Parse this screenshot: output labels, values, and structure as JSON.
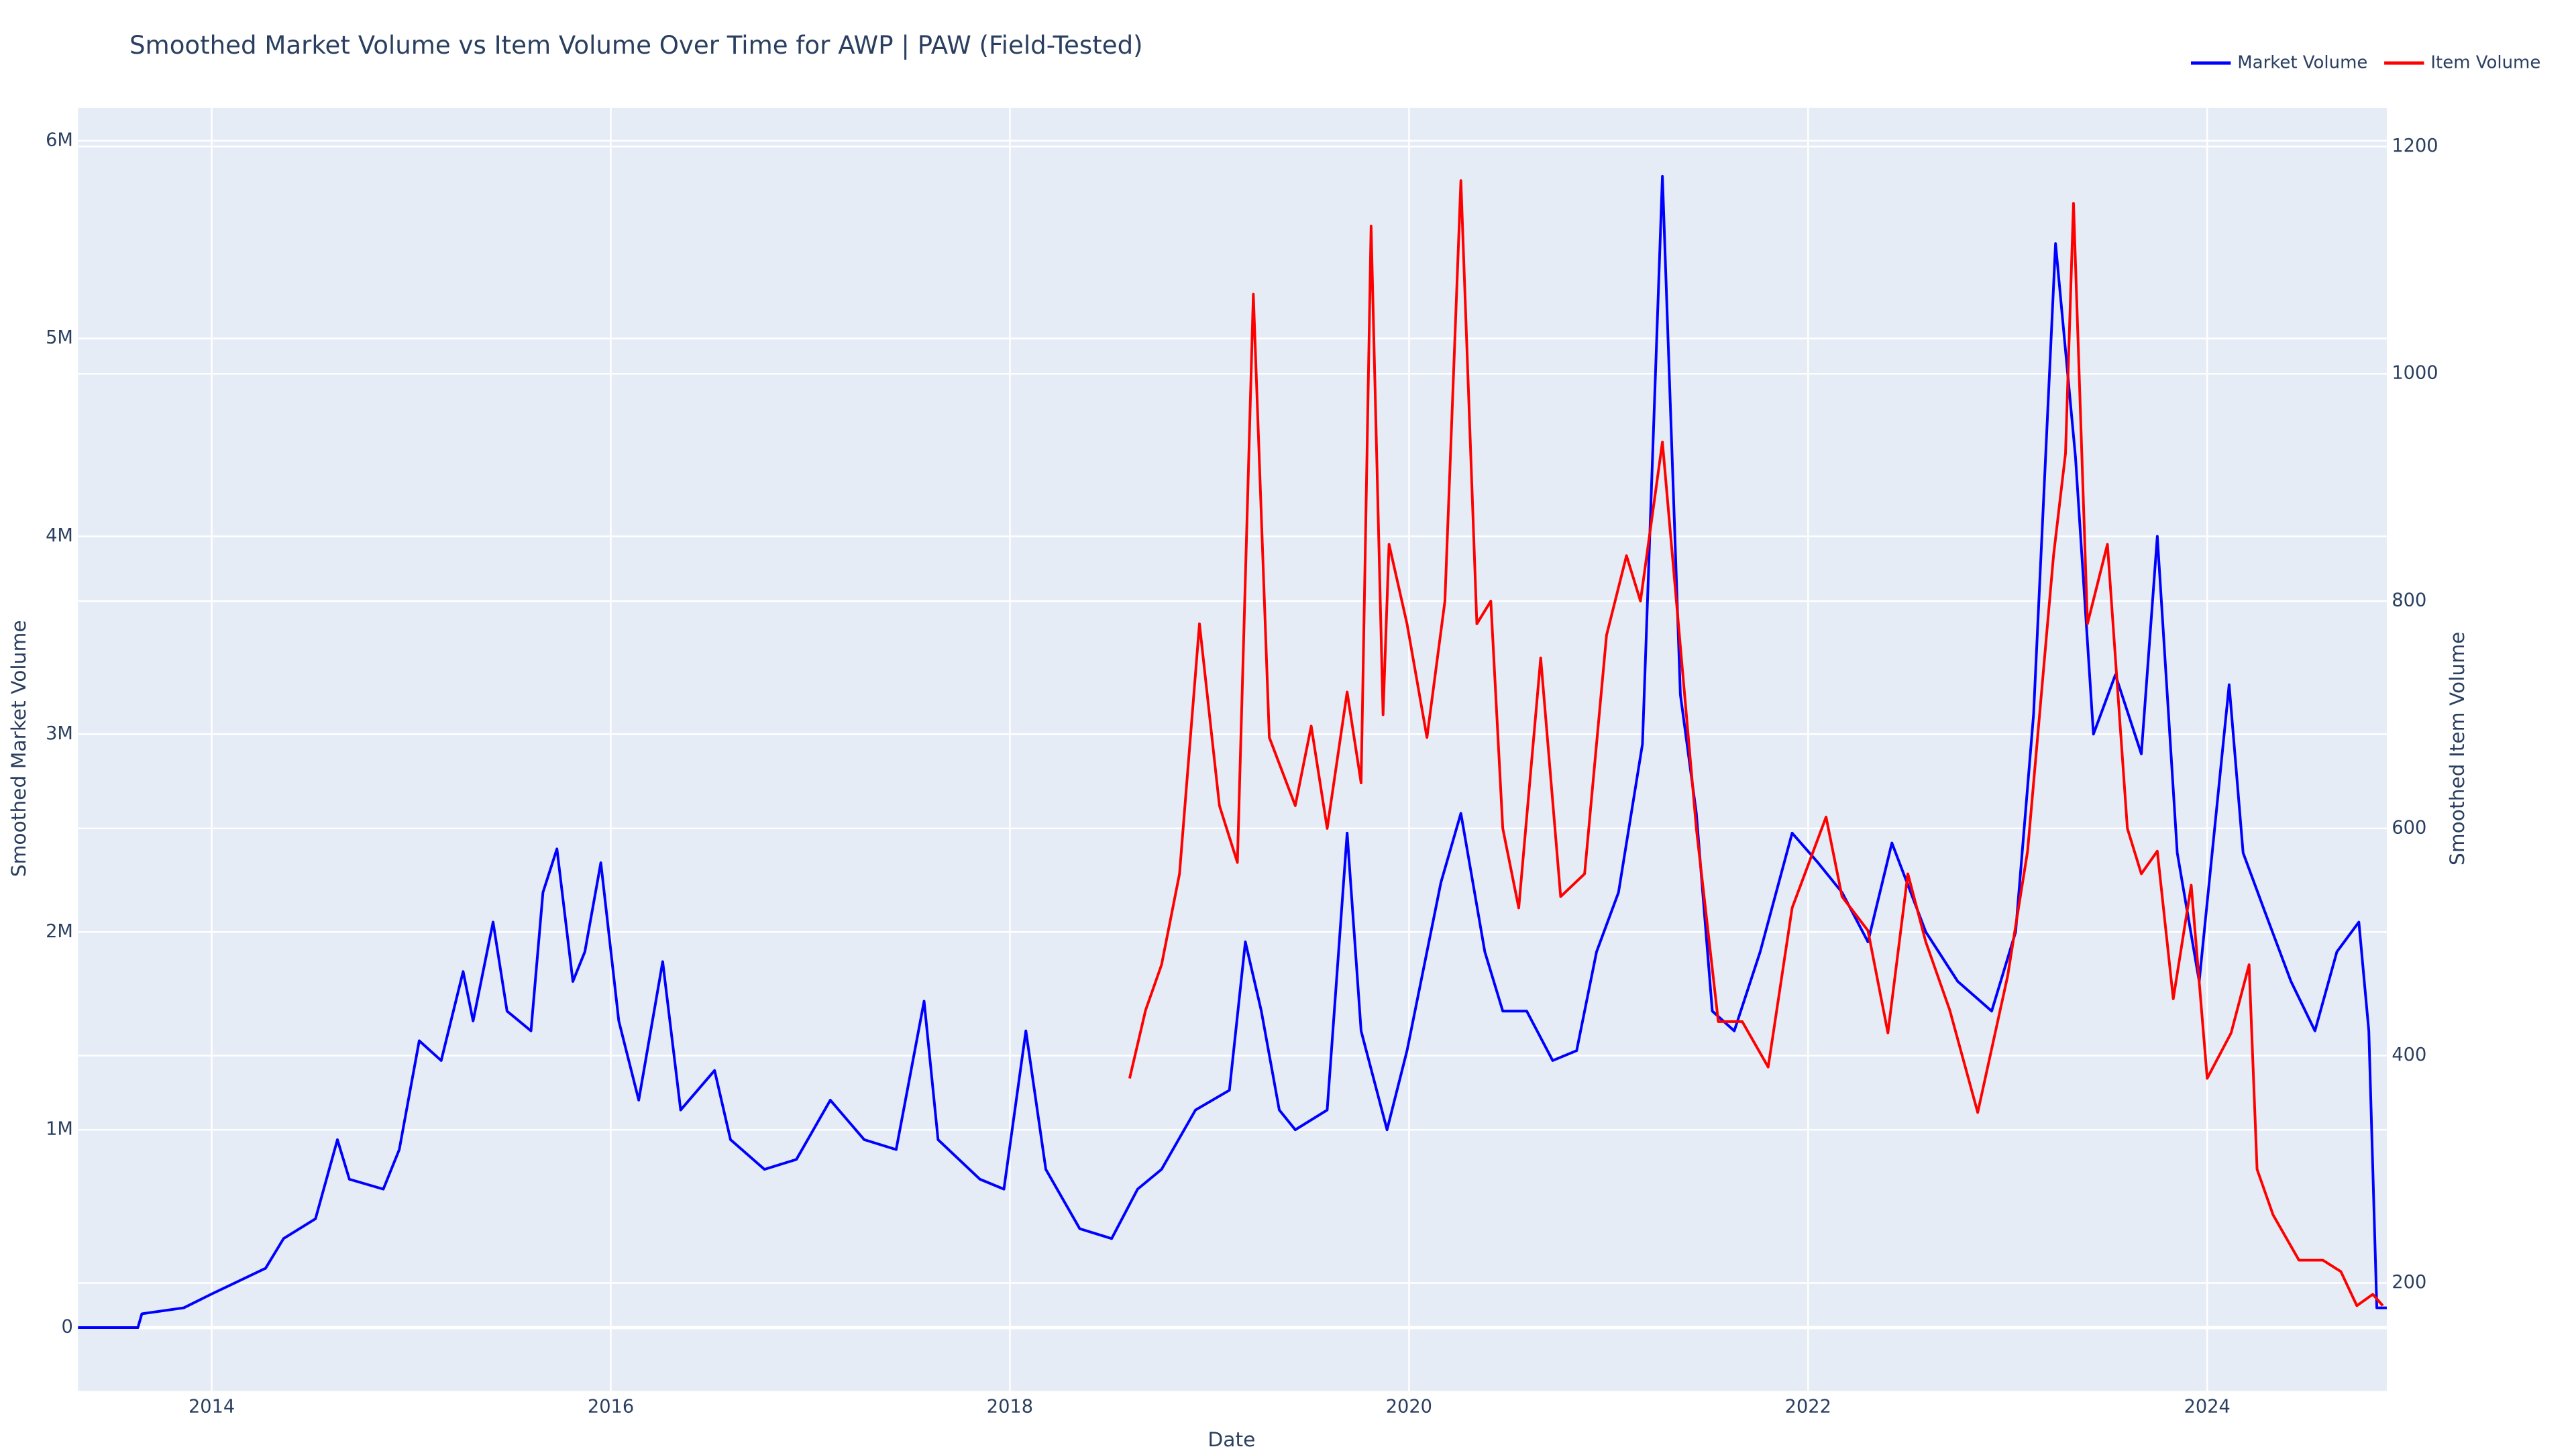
{
  "chart_data": {
    "type": "line",
    "title": "Smoothed Market Volume vs Item Volume Over Time for AWP | PAW (Field-Tested)",
    "x_label": "Date",
    "y_label": "Smoothed Market Volume",
    "y2_label": "Smoothed Item Volume",
    "xlim": [
      2013.33,
      2024.9
    ],
    "xticks": [
      2014,
      2016,
      2018,
      2020,
      2022,
      2024
    ],
    "ylim": [
      -320000,
      6166000
    ],
    "yticks": [
      0,
      {
        "value": 1000000,
        "label": "1M"
      },
      {
        "value": 2000000,
        "label": "2M"
      },
      {
        "value": 3000000,
        "label": "3M"
      },
      {
        "value": 4000000,
        "label": "4M"
      },
      {
        "value": 5000000,
        "label": "5M"
      },
      {
        "value": 6000000,
        "label": "6M"
      }
    ],
    "y2lim": [
      105,
      1234
    ],
    "y2ticks": [
      200,
      400,
      600,
      800,
      1000,
      1200
    ],
    "grid": true,
    "legend": "top-right",
    "series": [
      {
        "name": "Market Volume",
        "color": "blue",
        "x": [
          2013.33,
          2013.63,
          2013.65,
          2013.86,
          2014.0,
          2014.27,
          2014.36,
          2014.52,
          2014.63,
          2014.69,
          2014.86,
          2014.94,
          2015.04,
          2015.15,
          2015.26,
          2015.31,
          2015.41,
          2015.48,
          2015.6,
          2015.66,
          2015.73,
          2015.81,
          2015.87,
          2015.95,
          2016.04,
          2016.14,
          2016.26,
          2016.35,
          2016.52,
          2016.6,
          2016.77,
          2016.93,
          2017.1,
          2017.27,
          2017.43,
          2017.57,
          2017.64,
          2017.85,
          2017.97,
          2018.08,
          2018.18,
          2018.35,
          2018.51,
          2018.64,
          2018.76,
          2018.93,
          2019.1,
          2019.18,
          2019.26,
          2019.35,
          2019.43,
          2019.59,
          2019.69,
          2019.76,
          2019.89,
          2019.99,
          2020.16,
          2020.26,
          2020.38,
          2020.47,
          2020.59,
          2020.72,
          2020.84,
          2020.94,
          2021.05,
          2021.17,
          2021.27,
          2021.36,
          2021.44,
          2021.52,
          2021.63,
          2021.76,
          2021.92,
          2022.05,
          2022.17,
          2022.3,
          2022.42,
          2022.59,
          2022.75,
          2022.92,
          2023.04,
          2023.13,
          2023.24,
          2023.34,
          2023.43,
          2023.54,
          2023.67,
          2023.75,
          2023.85,
          2023.96,
          2024.11,
          2024.18,
          2024.29,
          2024.42,
          2024.54,
          2024.65,
          2024.76,
          2024.81,
          2024.85,
          2024.9
        ],
        "values": [
          0,
          0,
          70000,
          100000,
          170000,
          300000,
          450000,
          550000,
          950000,
          750000,
          700000,
          900000,
          1450000,
          1350000,
          1800000,
          1550000,
          2050000,
          1600000,
          1500000,
          2200000,
          2420000,
          1750000,
          1900000,
          2350000,
          1550000,
          1150000,
          1850000,
          1100000,
          1300000,
          950000,
          800000,
          850000,
          1150000,
          950000,
          900000,
          1650000,
          950000,
          750000,
          700000,
          1500000,
          800000,
          500000,
          450000,
          700000,
          800000,
          1100000,
          1200000,
          1950000,
          1600000,
          1100000,
          1000000,
          1100000,
          2500000,
          1500000,
          1000000,
          1400000,
          2250000,
          2600000,
          1900000,
          1600000,
          1600000,
          1350000,
          1400000,
          1900000,
          2200000,
          2950000,
          5820000,
          3200000,
          2600000,
          1600000,
          1500000,
          1900000,
          2500000,
          2350000,
          2200000,
          1950000,
          2450000,
          2000000,
          1750000,
          1600000,
          2000000,
          3100000,
          5480000,
          4400000,
          3000000,
          3300000,
          2900000,
          4000000,
          2400000,
          1750000,
          3250000,
          2400000,
          2100000,
          1750000,
          1500000,
          1900000,
          2050000,
          1500000,
          100000,
          100000
        ]
      },
      {
        "name": "Item Volume",
        "color": "red",
        "axis": "y2",
        "x": [
          2018.6,
          2018.68,
          2018.76,
          2018.85,
          2018.95,
          2019.05,
          2019.14,
          2019.22,
          2019.3,
          2019.43,
          2019.51,
          2019.59,
          2019.69,
          2019.76,
          2019.81,
          2019.87,
          2019.9,
          2019.99,
          2020.09,
          2020.18,
          2020.26,
          2020.34,
          2020.41,
          2020.47,
          2020.55,
          2020.66,
          2020.76,
          2020.88,
          2020.99,
          2021.09,
          2021.16,
          2021.27,
          2021.38,
          2021.44,
          2021.55,
          2021.67,
          2021.8,
          2021.92,
          2022.09,
          2022.17,
          2022.3,
          2022.4,
          2022.5,
          2022.59,
          2022.71,
          2022.85,
          2023.0,
          2023.1,
          2023.23,
          2023.29,
          2023.33,
          2023.4,
          2023.5,
          2023.6,
          2023.67,
          2023.75,
          2023.83,
          2023.92,
          2024.0,
          2024.12,
          2024.21,
          2024.25,
          2024.33,
          2024.46,
          2024.58,
          2024.67,
          2024.75,
          2024.83,
          2024.88
        ],
        "values": [
          380,
          440,
          480,
          560,
          780,
          620,
          570,
          1070,
          680,
          620,
          690,
          600,
          720,
          640,
          1130,
          700,
          850,
          780,
          680,
          800,
          1170,
          780,
          800,
          600,
          530,
          750,
          540,
          560,
          770,
          840,
          800,
          940,
          720,
          600,
          430,
          430,
          390,
          530,
          610,
          540,
          510,
          420,
          560,
          500,
          440,
          350,
          470,
          580,
          840,
          930,
          1150,
          780,
          850,
          600,
          560,
          580,
          450,
          550,
          380,
          420,
          480,
          300,
          260,
          220,
          220,
          210,
          180,
          190,
          180
        ]
      }
    ]
  }
}
